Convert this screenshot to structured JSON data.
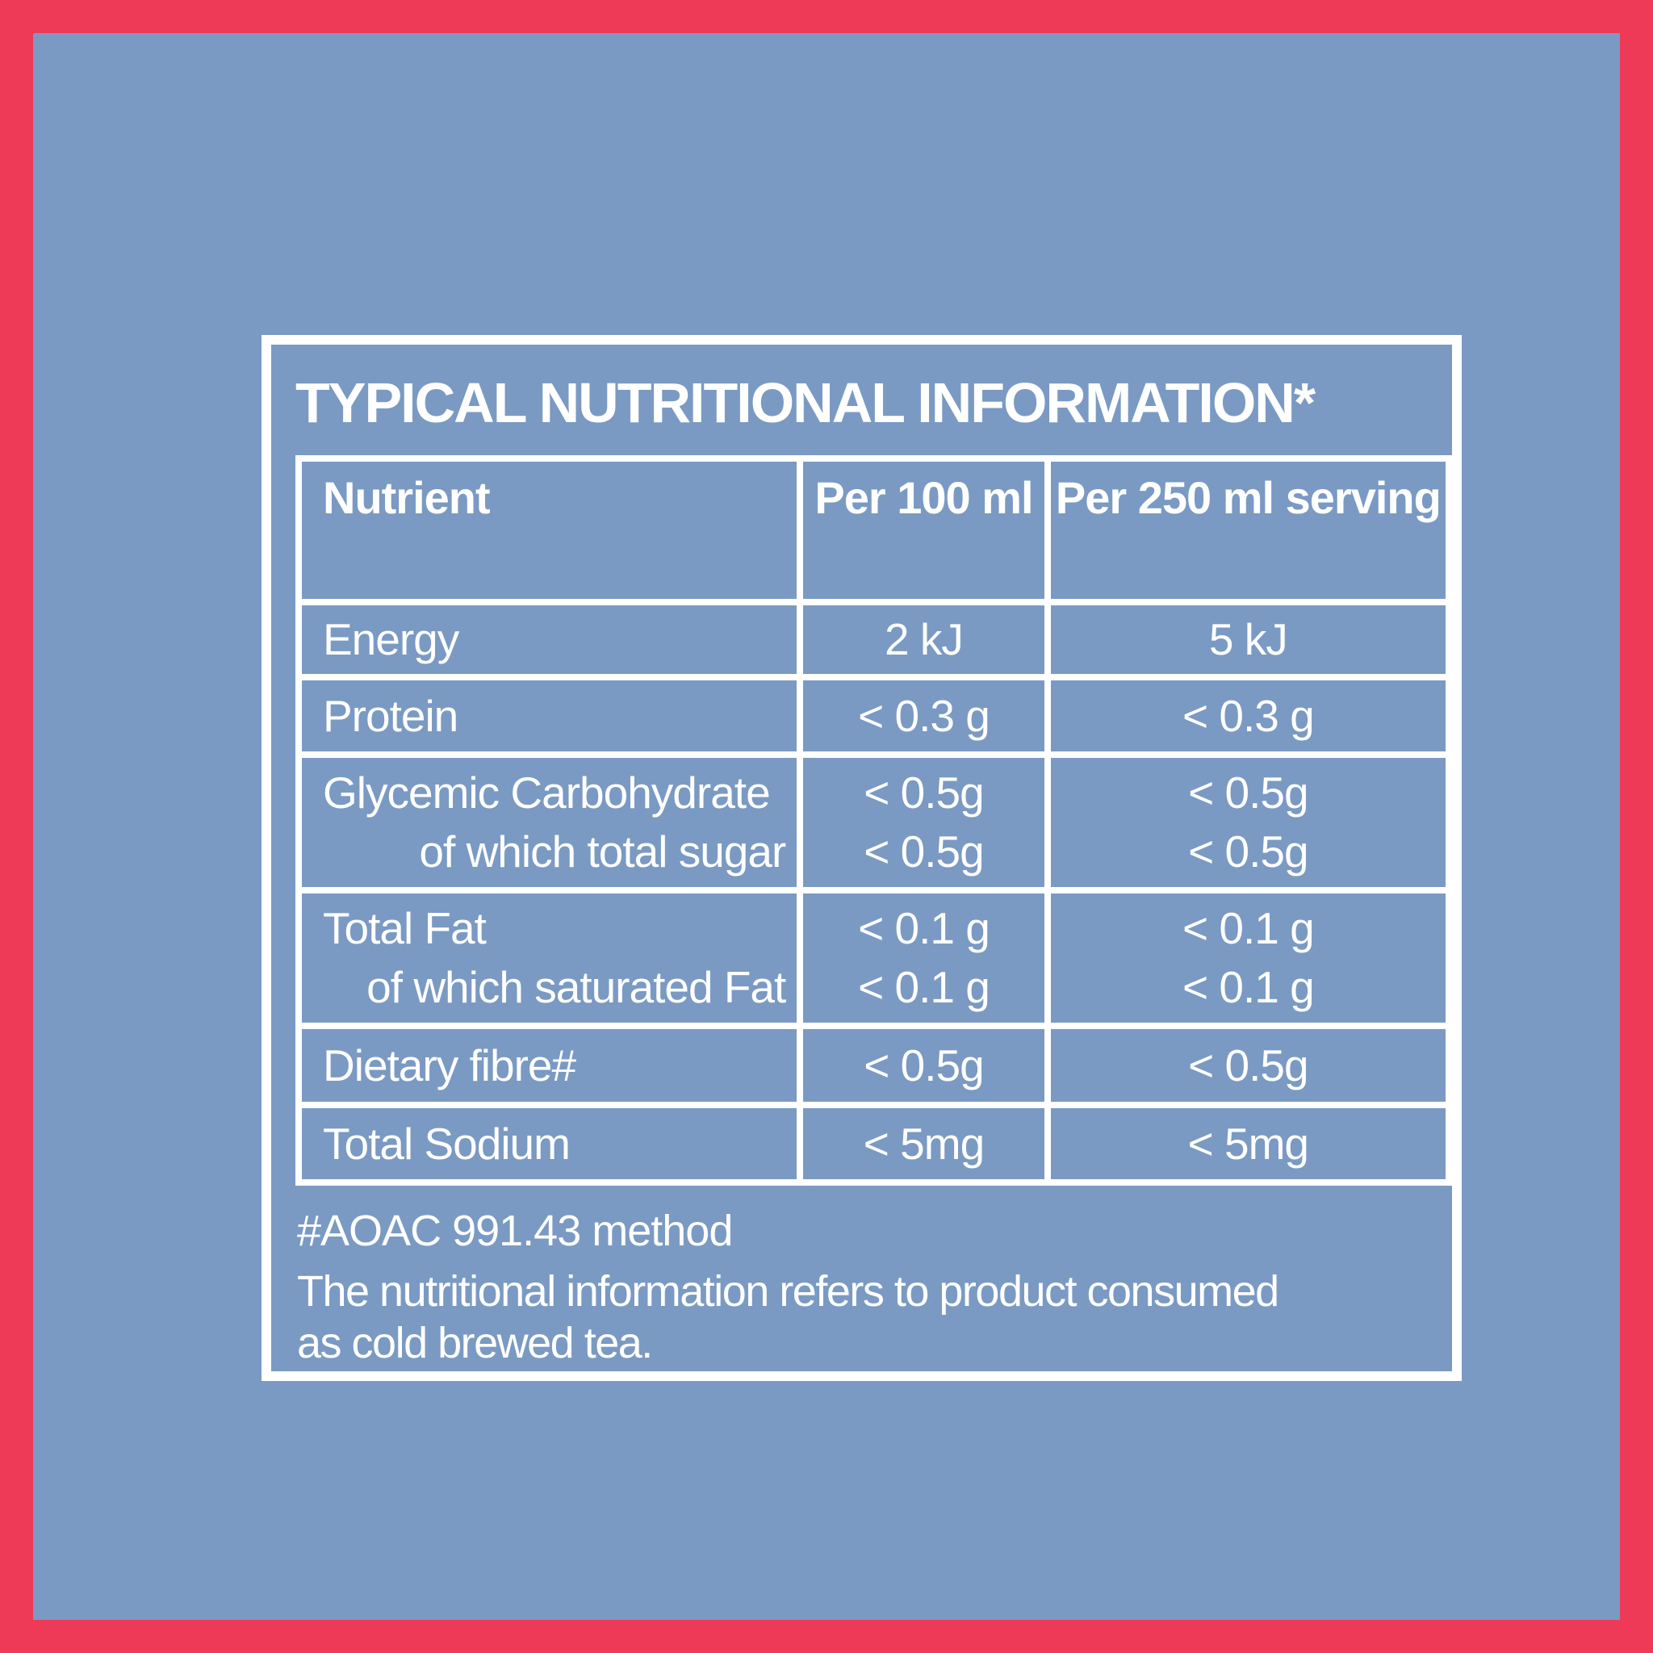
{
  "colors": {
    "background": "#EE3A56",
    "panel": "#7A9AC3",
    "ink": "#FFFFFF"
  },
  "title": "TYPICAL NUTRITIONAL INFORMATION*",
  "table": {
    "columns": [
      "Nutrient",
      "Per 100 ml",
      "Per 250 ml serving"
    ],
    "rows": [
      {
        "nutrient": [
          "Energy"
        ],
        "per_100ml": [
          "2 kJ"
        ],
        "per_250ml": [
          "5 kJ"
        ]
      },
      {
        "nutrient": [
          "Protein"
        ],
        "per_100ml": [
          "< 0.3 g"
        ],
        "per_250ml": [
          "< 0.3 g"
        ]
      },
      {
        "nutrient": [
          "Glycemic Carbohydrate",
          "of which total sugar"
        ],
        "per_100ml": [
          "< 0.5g",
          "< 0.5g"
        ],
        "per_250ml": [
          "< 0.5g",
          "< 0.5g"
        ]
      },
      {
        "nutrient": [
          "Total Fat",
          "of which saturated Fat"
        ],
        "per_100ml": [
          "< 0.1 g",
          "< 0.1 g"
        ],
        "per_250ml": [
          "< 0.1 g",
          "< 0.1 g"
        ]
      },
      {
        "nutrient": [
          "Dietary fibre#"
        ],
        "per_100ml": [
          "< 0.5g"
        ],
        "per_250ml": [
          "< 0.5g"
        ]
      },
      {
        "nutrient": [
          "Total Sodium"
        ],
        "per_100ml": [
          "< 5mg"
        ],
        "per_250ml": [
          "< 5mg"
        ]
      }
    ]
  },
  "footnotes": {
    "method": "#AOAC 991.43 method",
    "note_lines": [
      "The nutritional information refers to product consumed",
      "as cold brewed tea."
    ]
  }
}
